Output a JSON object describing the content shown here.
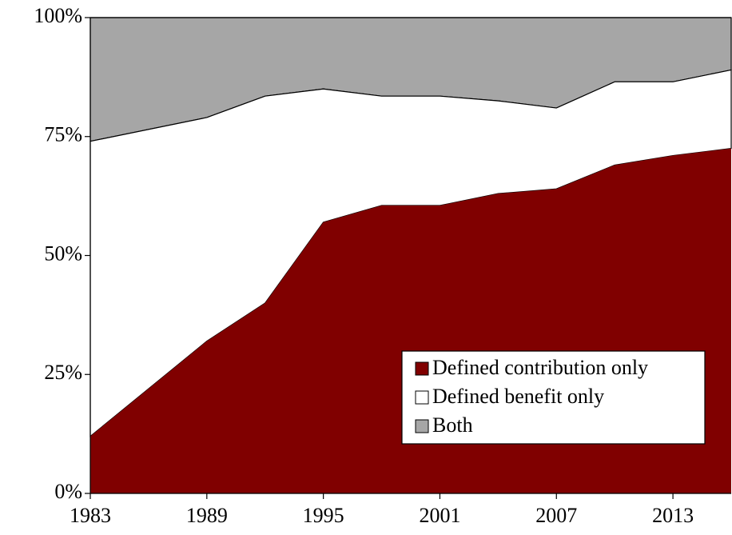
{
  "chart_data": {
    "type": "stacked_area",
    "x": [
      1983,
      1989,
      1992,
      1995,
      1998,
      2001,
      2004,
      2007,
      2010,
      2013,
      2016
    ],
    "series": [
      {
        "name": "Defined contribution only",
        "color": "#800000",
        "values": [
          12,
          32,
          40,
          57,
          60.5,
          60.5,
          63,
          64,
          69,
          71,
          72.5
        ]
      },
      {
        "name": "Defined benefit only",
        "color": "#ffffff",
        "values": [
          62,
          47,
          43.5,
          28,
          23,
          23,
          19.5,
          17,
          17.5,
          15.5,
          16.5
        ]
      },
      {
        "name": "Both",
        "color": "#a6a6a6",
        "values": [
          26,
          21,
          16.5,
          15,
          16.5,
          16.5,
          17.5,
          19,
          13.5,
          13.5,
          11
        ]
      }
    ],
    "xlim": [
      1983,
      2016
    ],
    "xticks": [
      1983,
      1989,
      1995,
      2001,
      2007,
      2013
    ],
    "ylim": [
      0,
      100
    ],
    "yticks": [
      {
        "value": 0,
        "label": "0%"
      },
      {
        "value": 25,
        "label": "25%"
      },
      {
        "value": 50,
        "label": "50%"
      },
      {
        "value": 75,
        "label": "75%"
      },
      {
        "value": 100,
        "label": "100%"
      }
    ],
    "legend": "lower right"
  }
}
